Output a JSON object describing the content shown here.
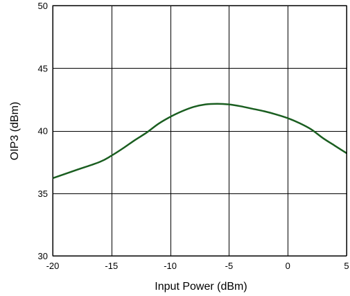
{
  "chart_data": {
    "type": "line",
    "xlabel": "Input Power (dBm)",
    "ylabel": "OIP3 (dBm)",
    "xlim": [
      -20,
      5
    ],
    "ylim": [
      30,
      50
    ],
    "x_ticks": [
      -20,
      -15,
      -10,
      -5,
      0,
      5
    ],
    "y_ticks": [
      30,
      35,
      40,
      45,
      50
    ],
    "x_tick_labels": [
      "-20",
      "-15",
      "-10",
      "-5",
      "0",
      "5"
    ],
    "y_tick_labels": [
      "30",
      "35",
      "40",
      "45",
      "50"
    ],
    "grid": true,
    "series": [
      {
        "color": "#1a5e20",
        "x": [
          -20,
          -18,
          -16,
          -15,
          -14,
          -13,
          -12,
          -11,
          -10,
          -9,
          -8,
          -7,
          -6,
          -5,
          -4,
          -3,
          -2,
          -1,
          0,
          1,
          2,
          3,
          4,
          5
        ],
        "y": [
          36.2,
          36.85,
          37.5,
          38.0,
          38.6,
          39.25,
          39.85,
          40.55,
          41.1,
          41.55,
          41.9,
          42.1,
          42.15,
          42.1,
          41.95,
          41.75,
          41.55,
          41.3,
          41.0,
          40.6,
          40.1,
          39.4,
          38.8,
          38.2
        ]
      }
    ]
  }
}
